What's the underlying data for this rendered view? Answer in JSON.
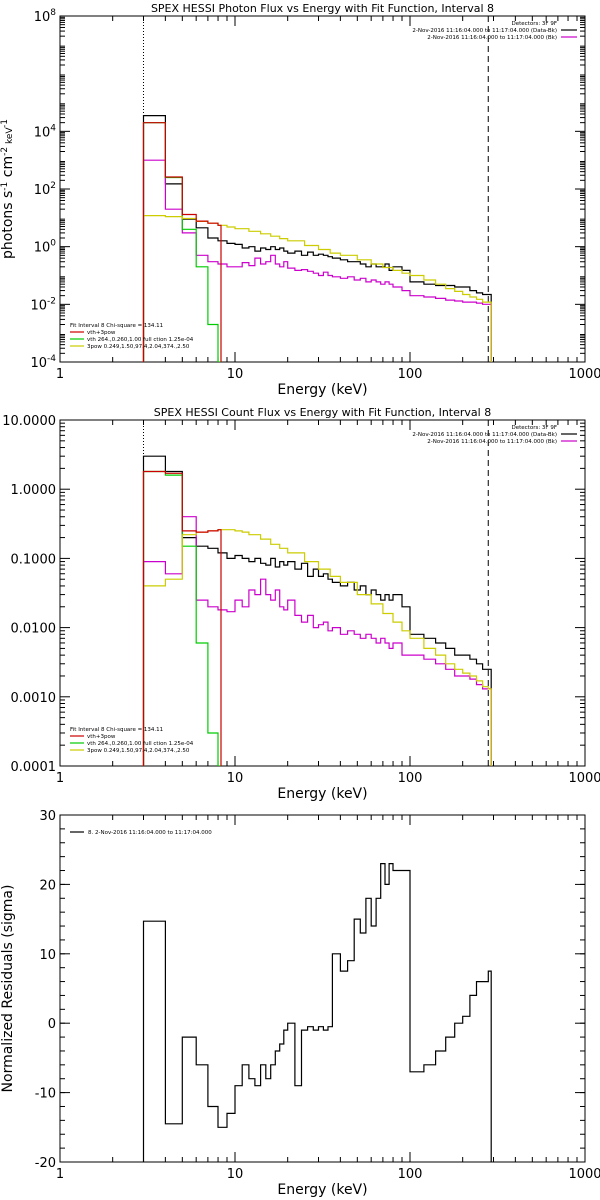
{
  "chart_data": [
    {
      "type": "line",
      "title": "SPEX HESSI Photon Flux vs Energy with Fit Function, Interval 8",
      "xlabel": "Energy (keV)",
      "ylabel": {
        "base": "photons s",
        "e1": "-1",
        "mid": " cm",
        "e2": "-2",
        "end": " keV",
        "e3": "-1"
      },
      "xscale": "log",
      "yscale": "log",
      "xlim": [
        1,
        1000
      ],
      "ylim": [
        0.0001,
        100000000
      ],
      "xticks": [
        {
          "v": 1,
          "t": "1"
        },
        {
          "v": 10,
          "t": "10"
        },
        {
          "v": 100,
          "t": "100"
        },
        {
          "v": 1000,
          "t": "1000"
        }
      ],
      "yticks": [
        {
          "v": 0.0001,
          "t": "10",
          "e": "-4"
        },
        {
          "v": 0.01,
          "t": "10",
          "e": "-2"
        },
        {
          "v": 1,
          "t": "10",
          "e": "0"
        },
        {
          "v": 100,
          "t": "10",
          "e": "2"
        },
        {
          "v": 10000,
          "t": "10",
          "e": "4"
        },
        {
          "v": 100000000,
          "t": "10",
          "e": "8"
        }
      ],
      "vlines": [
        {
          "x": 3,
          "style": "dotted"
        },
        {
          "x": 280,
          "style": "dashed"
        }
      ],
      "legend_top": [
        "Detectors: 3F 9F",
        "2-Nov-2016 11:16:04.000 to 11:17:04.000 (Data-Bk)",
        "2-Nov-2016 11:16:04.000 to 11:17:04.000 (Bk)"
      ],
      "legend_top_colors": [
        "",
        "#000000",
        "#cc00cc"
      ],
      "legend_bottom": [
        "Fit Interval 8   Chi-square = 134.11",
        "vth+3pow",
        "vth 264.,0.260,1.00  full ction 1.25e-04",
        "3pow 0.249,1.50,97.4,2.04,374.,2.50"
      ],
      "legend_bottom_colors": [
        "",
        "#cc0000",
        "#00cc00",
        "#cccc00"
      ],
      "series": [
        {
          "name": "Data-Bk",
          "color": "#000000",
          "step": true,
          "x": [
            3,
            3.5,
            4,
            4.5,
            5,
            6,
            7,
            8,
            9,
            10,
            11,
            12,
            13,
            14,
            15,
            16,
            17,
            18,
            19,
            20,
            22,
            24,
            26,
            28,
            30,
            32,
            34,
            36,
            40,
            44,
            48,
            52,
            56,
            60,
            64,
            68,
            72,
            76,
            80,
            90,
            100,
            120,
            140,
            160,
            180,
            200,
            220,
            240,
            260,
            280
          ],
          "y": [
            35000,
            35000,
            150,
            150,
            9,
            4.5,
            2,
            1.6,
            1.3,
            1.2,
            0.9,
            1.0,
            0.7,
            0.9,
            0.8,
            1.0,
            0.8,
            0.9,
            0.7,
            0.6,
            0.7,
            0.5,
            0.65,
            0.5,
            0.55,
            0.5,
            0.45,
            0.4,
            0.35,
            0.3,
            0.3,
            0.25,
            0.2,
            0.25,
            0.2,
            0.2,
            0.25,
            0.15,
            0.2,
            0.15,
            0.06,
            0.05,
            0.045,
            0.045,
            0.04,
            0.04,
            0.03,
            0.025,
            0.022,
            0.022
          ]
        },
        {
          "name": "Bk",
          "color": "#cc00cc",
          "step": true,
          "x": [
            3,
            3.5,
            4,
            4.5,
            5,
            6,
            7,
            8,
            9,
            10,
            11,
            12,
            13,
            14,
            15,
            16,
            17,
            18,
            19,
            20,
            22,
            24,
            26,
            28,
            30,
            32,
            34,
            36,
            40,
            44,
            48,
            52,
            56,
            60,
            64,
            68,
            72,
            76,
            80,
            90,
            100,
            120,
            140,
            160,
            180,
            200,
            220,
            240,
            260,
            280
          ],
          "y": [
            1000,
            1000,
            20,
            20,
            3,
            0.5,
            0.3,
            0.25,
            0.2,
            0.2,
            0.28,
            0.22,
            0.4,
            0.25,
            0.3,
            0.5,
            0.25,
            0.2,
            0.3,
            0.18,
            0.15,
            0.16,
            0.14,
            0.12,
            0.1,
            0.13,
            0.1,
            0.09,
            0.08,
            0.09,
            0.07,
            0.08,
            0.06,
            0.07,
            0.06,
            0.05,
            0.06,
            0.05,
            0.04,
            0.03,
            0.02,
            0.018,
            0.016,
            0.014,
            0.013,
            0.012,
            0.012,
            0.011,
            0.01,
            0.01
          ]
        },
        {
          "name": "vth",
          "color": "#00cc00",
          "step": true,
          "x": [
            3,
            3.5,
            4,
            4.5,
            5,
            6,
            7,
            8
          ],
          "y": [
            20000,
            20000,
            250,
            250,
            4,
            0.2,
            0.002,
            0.0001
          ]
        },
        {
          "name": "3pow",
          "color": "#cccc00",
          "step": true,
          "x": [
            3,
            4,
            5,
            6,
            7,
            8,
            9,
            10,
            12,
            14,
            16,
            18,
            20,
            25,
            30,
            35,
            40,
            50,
            60,
            70,
            80,
            90,
            100,
            120,
            140,
            160,
            180,
            200,
            220,
            240,
            260,
            280
          ],
          "y": [
            12,
            11,
            9.5,
            7.5,
            6.5,
            5.5,
            4.8,
            4.2,
            3.4,
            2.8,
            2.3,
            1.9,
            1.6,
            1.1,
            0.8,
            0.6,
            0.5,
            0.35,
            0.25,
            0.19,
            0.15,
            0.12,
            0.1,
            0.07,
            0.05,
            0.035,
            0.028,
            0.022,
            0.018,
            0.015,
            0.012,
            0.012
          ]
        },
        {
          "name": "vth+3pow",
          "color": "#cc0000",
          "step": true,
          "x": [
            3,
            3.5,
            4,
            4.5,
            5,
            6,
            7,
            8
          ],
          "y": [
            20000,
            20000,
            260,
            260,
            13,
            7.7,
            6.5,
            5.5
          ]
        }
      ]
    },
    {
      "type": "line",
      "title": "SPEX HESSI Count Flux vs Energy with Fit Function, Interval 8",
      "xlabel": "Energy (keV)",
      "ylabel": "",
      "xscale": "log",
      "yscale": "log",
      "xlim": [
        1,
        1000
      ],
      "ylim": [
        0.0001,
        10
      ],
      "xticks": [
        {
          "v": 1,
          "t": "1"
        },
        {
          "v": 10,
          "t": "10"
        },
        {
          "v": 100,
          "t": "100"
        },
        {
          "v": 1000,
          "t": "1000"
        }
      ],
      "yticks": [
        {
          "v": 0.0001,
          "t": "0.0001"
        },
        {
          "v": 0.001,
          "t": "0.0010"
        },
        {
          "v": 0.01,
          "t": "0.0100"
        },
        {
          "v": 0.1,
          "t": "0.1000"
        },
        {
          "v": 1,
          "t": "1.0000"
        },
        {
          "v": 10,
          "t": "10.0000"
        }
      ],
      "vlines": [
        {
          "x": 3,
          "style": "dotted"
        },
        {
          "x": 280,
          "style": "dashed"
        }
      ],
      "legend_top": [
        "Detectors: 3F 9F",
        "2-Nov-2016 11:16:04.000 to 11:17:04.000 (Data-Bk)",
        "2-Nov-2016 11:16:04.000 to 11:17:04.000 (Bk)"
      ],
      "legend_top_colors": [
        "",
        "#000000",
        "#cc00cc"
      ],
      "legend_bottom": [
        "Fit Interval 8   Chi-square = 134.11",
        "vth+3pow",
        "vth 264.,0.260,1.00  full ction 1.25e-04",
        "3pow 0.249,1.50,97.4,2.04,374.,2.50"
      ],
      "legend_bottom_colors": [
        "",
        "#cc0000",
        "#00cc00",
        "#cccc00"
      ],
      "series": [
        {
          "name": "Data-Bk",
          "color": "#000000",
          "step": true,
          "x": [
            3,
            4,
            5,
            6,
            7,
            8,
            9,
            10,
            11,
            12,
            13,
            14,
            15,
            16,
            17,
            18,
            19,
            20,
            22,
            24,
            26,
            28,
            30,
            32,
            34,
            36,
            40,
            44,
            48,
            52,
            56,
            60,
            64,
            68,
            72,
            76,
            80,
            90,
            100,
            120,
            140,
            160,
            180,
            200,
            220,
            240,
            260,
            280
          ],
          "y": [
            3,
            1.8,
            0.2,
            0.15,
            0.14,
            0.12,
            0.1,
            0.11,
            0.1,
            0.09,
            0.1,
            0.085,
            0.08,
            0.1,
            0.075,
            0.09,
            0.08,
            0.09,
            0.07,
            0.085,
            0.055,
            0.07,
            0.055,
            0.06,
            0.05,
            0.045,
            0.04,
            0.045,
            0.035,
            0.04,
            0.03,
            0.035,
            0.03,
            0.025,
            0.03,
            0.025,
            0.03,
            0.02,
            0.008,
            0.007,
            0.006,
            0.005,
            0.004,
            0.004,
            0.0035,
            0.003,
            0.0025,
            0.0025
          ]
        },
        {
          "name": "Bk",
          "color": "#cc00cc",
          "step": true,
          "x": [
            3,
            4,
            5,
            6,
            7,
            8,
            9,
            10,
            11,
            12,
            13,
            14,
            15,
            16,
            17,
            18,
            19,
            20,
            22,
            24,
            26,
            28,
            30,
            32,
            34,
            36,
            40,
            44,
            48,
            52,
            56,
            60,
            64,
            68,
            72,
            76,
            80,
            90,
            100,
            120,
            140,
            160,
            180,
            200,
            220,
            240,
            260,
            280
          ],
          "y": [
            0.09,
            0.06,
            0.4,
            0.025,
            0.02,
            0.018,
            0.017,
            0.025,
            0.02,
            0.035,
            0.03,
            0.05,
            0.03,
            0.025,
            0.035,
            0.02,
            0.018,
            0.025,
            0.015,
            0.012,
            0.015,
            0.01,
            0.011,
            0.012,
            0.009,
            0.01,
            0.008,
            0.009,
            0.008,
            0.007,
            0.008,
            0.007,
            0.006,
            0.007,
            0.006,
            0.005,
            0.006,
            0.004,
            0.004,
            0.0035,
            0.003,
            0.0025,
            0.002,
            0.002,
            0.0018,
            0.0015,
            0.0013,
            0.0013
          ]
        },
        {
          "name": "vth",
          "color": "#00cc00",
          "step": true,
          "x": [
            3,
            4,
            5,
            6,
            7,
            8
          ],
          "y": [
            1.8,
            1.6,
            0.15,
            0.006,
            0.0003,
            0.0001
          ]
        },
        {
          "name": "3pow",
          "color": "#cccc00",
          "step": true,
          "x": [
            3,
            4,
            5,
            6,
            7,
            8,
            9,
            10,
            11,
            12,
            14,
            16,
            18,
            20,
            25,
            30,
            35,
            40,
            50,
            60,
            70,
            80,
            90,
            100,
            120,
            140,
            160,
            180,
            200,
            220,
            240,
            260,
            280
          ],
          "y": [
            0.04,
            0.05,
            0.22,
            0.24,
            0.25,
            0.26,
            0.26,
            0.25,
            0.24,
            0.22,
            0.19,
            0.16,
            0.14,
            0.12,
            0.09,
            0.07,
            0.055,
            0.045,
            0.03,
            0.022,
            0.016,
            0.012,
            0.009,
            0.007,
            0.005,
            0.004,
            0.003,
            0.0025,
            0.0022,
            0.002,
            0.0017,
            0.0014,
            0.0013
          ]
        },
        {
          "name": "vth+3pow",
          "color": "#cc0000",
          "step": true,
          "x": [
            3,
            4,
            5,
            6,
            7,
            8
          ],
          "y": [
            1.8,
            1.7,
            0.25,
            0.24,
            0.25,
            0.26
          ]
        }
      ]
    },
    {
      "type": "line",
      "title": "",
      "xlabel": "Energy (keV)",
      "ylabel": "Normalized Residuals (sigma)",
      "xscale": "log",
      "yscale": "linear",
      "xlim": [
        1,
        1000
      ],
      "ylim": [
        -20,
        30
      ],
      "xticks": [
        {
          "v": 1,
          "t": "1"
        },
        {
          "v": 10,
          "t": "10"
        },
        {
          "v": 100,
          "t": "100"
        },
        {
          "v": 1000,
          "t": "1000"
        }
      ],
      "yticks": [
        {
          "v": -20,
          "t": "-20"
        },
        {
          "v": -10,
          "t": "-10"
        },
        {
          "v": 0,
          "t": "0"
        },
        {
          "v": 10,
          "t": "10"
        },
        {
          "v": 20,
          "t": "20"
        },
        {
          "v": 30,
          "t": "30"
        }
      ],
      "legend": "8.  2-Nov-2016 11:16:04.000 to 11:17:04.000",
      "series": [
        {
          "name": "8.",
          "color": "#000000",
          "step": true,
          "x": [
            3,
            4,
            5,
            6,
            7,
            8,
            9,
            10,
            11,
            12,
            13,
            14,
            15,
            16,
            17,
            18,
            19,
            20,
            22,
            24,
            26,
            28,
            30,
            32,
            34,
            36,
            40,
            44,
            48,
            52,
            56,
            60,
            64,
            68,
            72,
            76,
            80,
            90,
            100,
            120,
            140,
            160,
            180,
            200,
            220,
            240,
            260,
            280
          ],
          "y": [
            14.7,
            -14.5,
            -2,
            -6,
            -12,
            -15,
            -13,
            -9,
            -6,
            -8,
            -9,
            -6,
            -8,
            -6,
            -4,
            -3,
            -1,
            0,
            -9,
            -1,
            -0.5,
            -1,
            -0.5,
            -1,
            -0.5,
            10,
            7.5,
            9,
            15,
            13,
            18,
            14,
            18,
            23,
            20,
            23,
            22,
            22,
            -7,
            -6,
            -4,
            -2,
            0,
            1,
            4,
            6,
            6,
            7.5
          ]
        }
      ]
    }
  ]
}
